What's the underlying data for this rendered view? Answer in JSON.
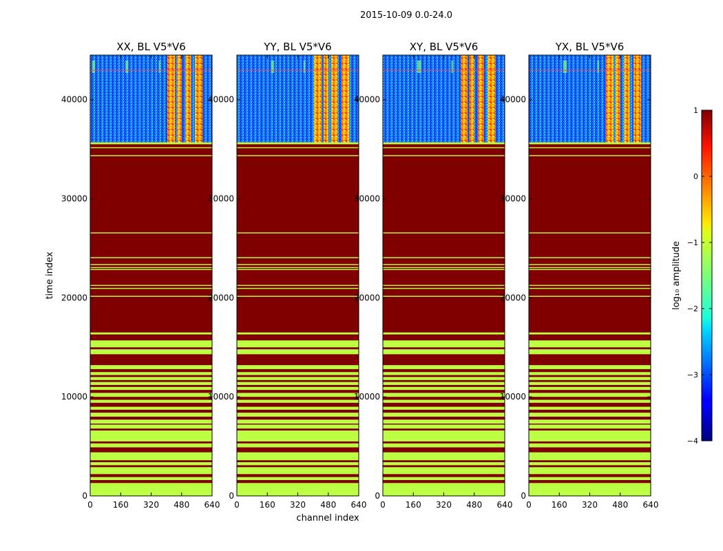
{
  "figure": {
    "suptitle": "2015-10-09 0.0-24.0"
  },
  "chart_data": {
    "type": "heatmap",
    "shared_xlabel": "channel index",
    "shared_ylabel": "time index",
    "xlim": [
      0,
      640
    ],
    "ylim": [
      0,
      44500
    ],
    "xticks": [
      0,
      160,
      320,
      480,
      640
    ],
    "yticks": [
      0,
      10000,
      20000,
      30000,
      40000
    ],
    "panels": [
      {
        "name": "xx",
        "title": "XX, BL V5*V6",
        "bright_bands": [
          [
            405,
            445
          ],
          [
            455,
            480
          ],
          [
            500,
            530
          ],
          [
            550,
            590
          ]
        ],
        "mid_bands": [
          [
            10,
            25
          ],
          [
            185,
            200
          ],
          [
            360,
            368
          ]
        ]
      },
      {
        "name": "yy",
        "title": "YY, BL V5*V6",
        "bright_bands": [
          [
            405,
            445
          ],
          [
            455,
            480
          ],
          [
            495,
            530
          ],
          [
            550,
            590
          ]
        ],
        "mid_bands": [
          [
            180,
            195
          ],
          [
            350,
            358
          ]
        ]
      },
      {
        "name": "xy",
        "title": "XY, BL V5*V6",
        "bright_bands": [
          [
            410,
            445
          ],
          [
            455,
            480
          ],
          [
            500,
            530
          ],
          [
            550,
            590
          ]
        ],
        "mid_bands": [
          [
            180,
            200
          ],
          [
            360,
            368
          ]
        ]
      },
      {
        "name": "yx",
        "title": "YX, BL V5*V6",
        "bright_bands": [
          [
            405,
            445
          ],
          [
            455,
            480
          ],
          [
            500,
            530
          ],
          [
            550,
            590
          ]
        ],
        "mid_bands": [
          [
            180,
            200
          ],
          [
            360,
            368
          ]
        ]
      }
    ],
    "lower_region": {
      "y_range": [
        0,
        35700
      ],
      "base_value": 1,
      "flag_value": -1.2,
      "flag_rows": [
        [
          35500,
          35700
        ],
        [
          35100,
          35200
        ],
        [
          34300,
          34400
        ],
        [
          26500,
          26600
        ],
        [
          24000,
          24100
        ],
        [
          23300,
          23400
        ],
        [
          23000,
          23100
        ],
        [
          22800,
          22900
        ],
        [
          21200,
          21300
        ],
        [
          20900,
          21000
        ],
        [
          20100,
          20200
        ],
        [
          16300,
          16500
        ],
        [
          15000,
          15700
        ],
        [
          14300,
          14800
        ],
        [
          12800,
          13200
        ],
        [
          12200,
          12500
        ],
        [
          11700,
          12000
        ],
        [
          11200,
          11500
        ],
        [
          10700,
          11000
        ],
        [
          10000,
          10400
        ],
        [
          9400,
          9700
        ],
        [
          8700,
          9000
        ],
        [
          8000,
          8400
        ],
        [
          7300,
          7700
        ],
        [
          6800,
          7200
        ],
        [
          5500,
          6600
        ],
        [
          4900,
          5300
        ],
        [
          3600,
          4400
        ],
        [
          3100,
          3400
        ],
        [
          2200,
          2900
        ],
        [
          1600,
          1900
        ],
        [
          0,
          1300
        ]
      ]
    },
    "colorbar": {
      "label": "log₁₀ amplitude",
      "range": [
        -4,
        1
      ],
      "ticks": [
        1,
        0,
        -1,
        -2,
        -3,
        -4
      ],
      "colormap": "jet"
    }
  }
}
